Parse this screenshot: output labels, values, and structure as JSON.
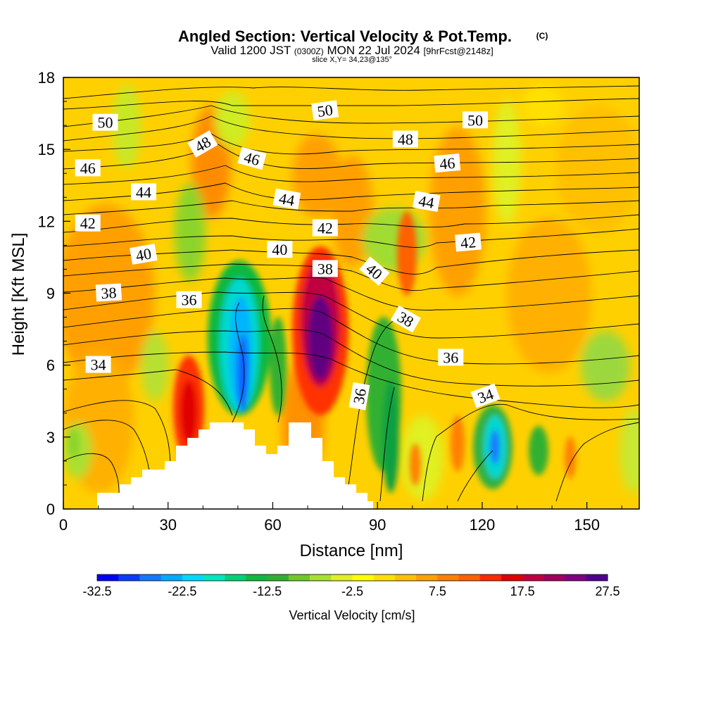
{
  "header": {
    "title": "Angled Section: Vertical Velocity & Pot.Temp.",
    "copyright": "(C)",
    "valid_prefix": "Valid 1200 JST",
    "valid_utc": "(0300Z)",
    "valid_date": "MON 22 Jul 2024",
    "forecast": "[9hrFcst@2148z]",
    "slice": "slice X,Y= 34,23@135°"
  },
  "chart_data": {
    "type": "heatmap",
    "title": "Angled Section: Vertical Velocity & Pot.Temp.",
    "xlabel": "Distance [nm]",
    "ylabel": "Height [Kft MSL]",
    "xlim": [
      0,
      165
    ],
    "ylim": [
      0,
      18
    ],
    "xticks": [
      "0",
      "30",
      "60",
      "90",
      "120",
      "150"
    ],
    "yticks": [
      "0",
      "3",
      "6",
      "9",
      "12",
      "15",
      "18"
    ],
    "colorbar": {
      "label": "Vertical Velocity [cm/s]",
      "ticks": [
        "-32.5",
        "-22.5",
        "-12.5",
        "-2.5",
        "7.5",
        "17.5",
        "27.5"
      ],
      "colors": [
        "#0000ff",
        "#0a3cff",
        "#1478ff",
        "#00aaff",
        "#00d8ff",
        "#00e8c0",
        "#00d078",
        "#10b840",
        "#30b030",
        "#70c828",
        "#a8e030",
        "#e0f020",
        "#ffff00",
        "#ffe000",
        "#ffc000",
        "#ffa000",
        "#ff8000",
        "#ff6000",
        "#ff2800",
        "#e00000",
        "#c00040",
        "#a00060",
        "#800080",
        "#500090"
      ]
    },
    "contours_pot_temp_labels": [
      {
        "value": "50",
        "x": 12,
        "y": 16.1,
        "angle": 0
      },
      {
        "value": "50",
        "x": 75,
        "y": 16.6,
        "angle": -8
      },
      {
        "value": "50",
        "x": 118,
        "y": 16.2,
        "angle": 0
      },
      {
        "value": "48",
        "x": 40,
        "y": 15.2,
        "angle": -30
      },
      {
        "value": "48",
        "x": 98,
        "y": 15.4,
        "angle": 0
      },
      {
        "value": "46",
        "x": 7,
        "y": 14.2,
        "angle": 0
      },
      {
        "value": "46",
        "x": 54,
        "y": 14.6,
        "angle": 15
      },
      {
        "value": "46",
        "x": 110,
        "y": 14.4,
        "angle": -5
      },
      {
        "value": "44",
        "x": 23,
        "y": 13.2,
        "angle": 0
      },
      {
        "value": "44",
        "x": 64,
        "y": 12.9,
        "angle": 10
      },
      {
        "value": "44",
        "x": 104,
        "y": 12.8,
        "angle": 10
      },
      {
        "value": "42",
        "x": 7,
        "y": 11.9,
        "angle": 0
      },
      {
        "value": "42",
        "x": 75,
        "y": 11.7,
        "angle": 0
      },
      {
        "value": "42",
        "x": 116,
        "y": 11.1,
        "angle": -5
      },
      {
        "value": "40",
        "x": 23,
        "y": 10.6,
        "angle": -10
      },
      {
        "value": "40",
        "x": 62,
        "y": 10.8,
        "angle": 0
      },
      {
        "value": "40",
        "x": 89,
        "y": 9.9,
        "angle": 40
      },
      {
        "value": "38",
        "x": 13,
        "y": 9.0,
        "angle": -3
      },
      {
        "value": "38",
        "x": 75,
        "y": 10.0,
        "angle": 0
      },
      {
        "value": "38",
        "x": 98,
        "y": 7.9,
        "angle": 30
      },
      {
        "value": "36",
        "x": 36,
        "y": 8.7,
        "angle": 0
      },
      {
        "value": "36",
        "x": 111,
        "y": 6.3,
        "angle": 0
      },
      {
        "value": "36",
        "x": 85,
        "y": 4.7,
        "angle": -80
      },
      {
        "value": "34",
        "x": 10,
        "y": 6.0,
        "angle": 0
      },
      {
        "value": "34",
        "x": 121,
        "y": 4.7,
        "angle": -20
      }
    ]
  }
}
